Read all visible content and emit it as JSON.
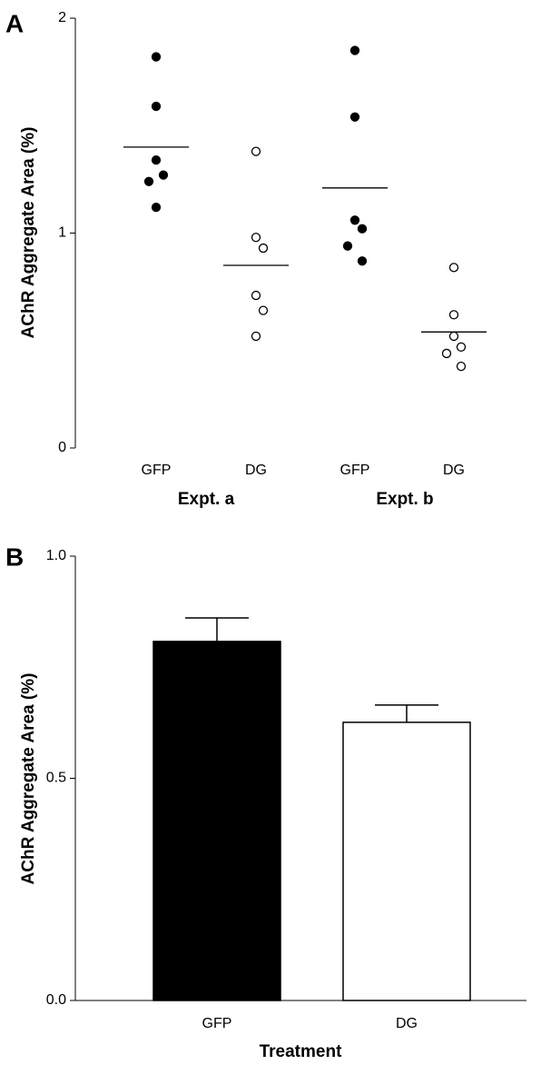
{
  "chart_data": [
    {
      "type": "dot",
      "panel": "A",
      "ylabel": "AChR Aggregate Area (%)",
      "categories": [
        "GFP",
        "DG",
        "GFP",
        "DG"
      ],
      "group_labels": [
        "Expt. a",
        "Expt. b"
      ],
      "colors": [
        "#000000",
        "#ffffff",
        "#000000",
        "#ffffff"
      ],
      "points": [
        [
          1.82,
          1.59,
          1.34,
          1.27,
          1.24,
          1.12
        ],
        [
          1.38,
          0.98,
          0.93,
          0.71,
          0.64,
          0.52
        ],
        [
          1.85,
          1.54,
          1.06,
          1.02,
          0.94,
          0.87
        ],
        [
          0.84,
          0.62,
          0.52,
          0.47,
          0.44,
          0.38
        ]
      ],
      "means": [
        1.4,
        0.85,
        1.21,
        0.54
      ],
      "ylim": [
        0,
        2
      ],
      "yticks": [
        0,
        1,
        2
      ]
    },
    {
      "type": "bar",
      "panel": "B",
      "ylabel": "AChR Aggregate Area (%)",
      "xlabel": "Treatment",
      "categories": [
        "GFP",
        "DG"
      ],
      "values": [
        0.808,
        0.626
      ],
      "errors": [
        0.053,
        0.039
      ],
      "colors": [
        "#000000",
        "#ffffff"
      ],
      "ylim": [
        0,
        1
      ],
      "yticks": [
        {
          "value": 0,
          "label": "0.0"
        },
        0.5,
        {
          "value": 1,
          "label": "1.0"
        }
      ]
    }
  ]
}
